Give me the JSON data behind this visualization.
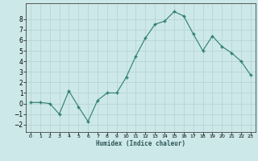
{
  "x": [
    0,
    1,
    2,
    3,
    4,
    5,
    6,
    7,
    8,
    9,
    10,
    11,
    12,
    13,
    14,
    15,
    16,
    17,
    18,
    19,
    20,
    21,
    22,
    23
  ],
  "y": [
    0.1,
    0.1,
    0.0,
    -1.0,
    1.2,
    -0.3,
    -1.7,
    0.3,
    1.0,
    1.0,
    2.5,
    4.5,
    6.2,
    7.5,
    7.8,
    8.7,
    8.3,
    6.6,
    5.0,
    6.4,
    5.4,
    4.8,
    4.0,
    2.7
  ],
  "xlabel": "Humidex (Indice chaleur)",
  "line_color": "#2e7d6e",
  "marker_color": "#2e7d6e",
  "bg_color": "#cce8e8",
  "grid_color": "#b8d4d4",
  "xlim": [
    -0.5,
    23.5
  ],
  "ylim": [
    -2.7,
    9.5
  ],
  "yticks": [
    -2,
    -1,
    0,
    1,
    2,
    3,
    4,
    5,
    6,
    7,
    8
  ],
  "xticks": [
    0,
    1,
    2,
    3,
    4,
    5,
    6,
    7,
    8,
    9,
    10,
    11,
    12,
    13,
    14,
    15,
    16,
    17,
    18,
    19,
    20,
    21,
    22,
    23
  ]
}
